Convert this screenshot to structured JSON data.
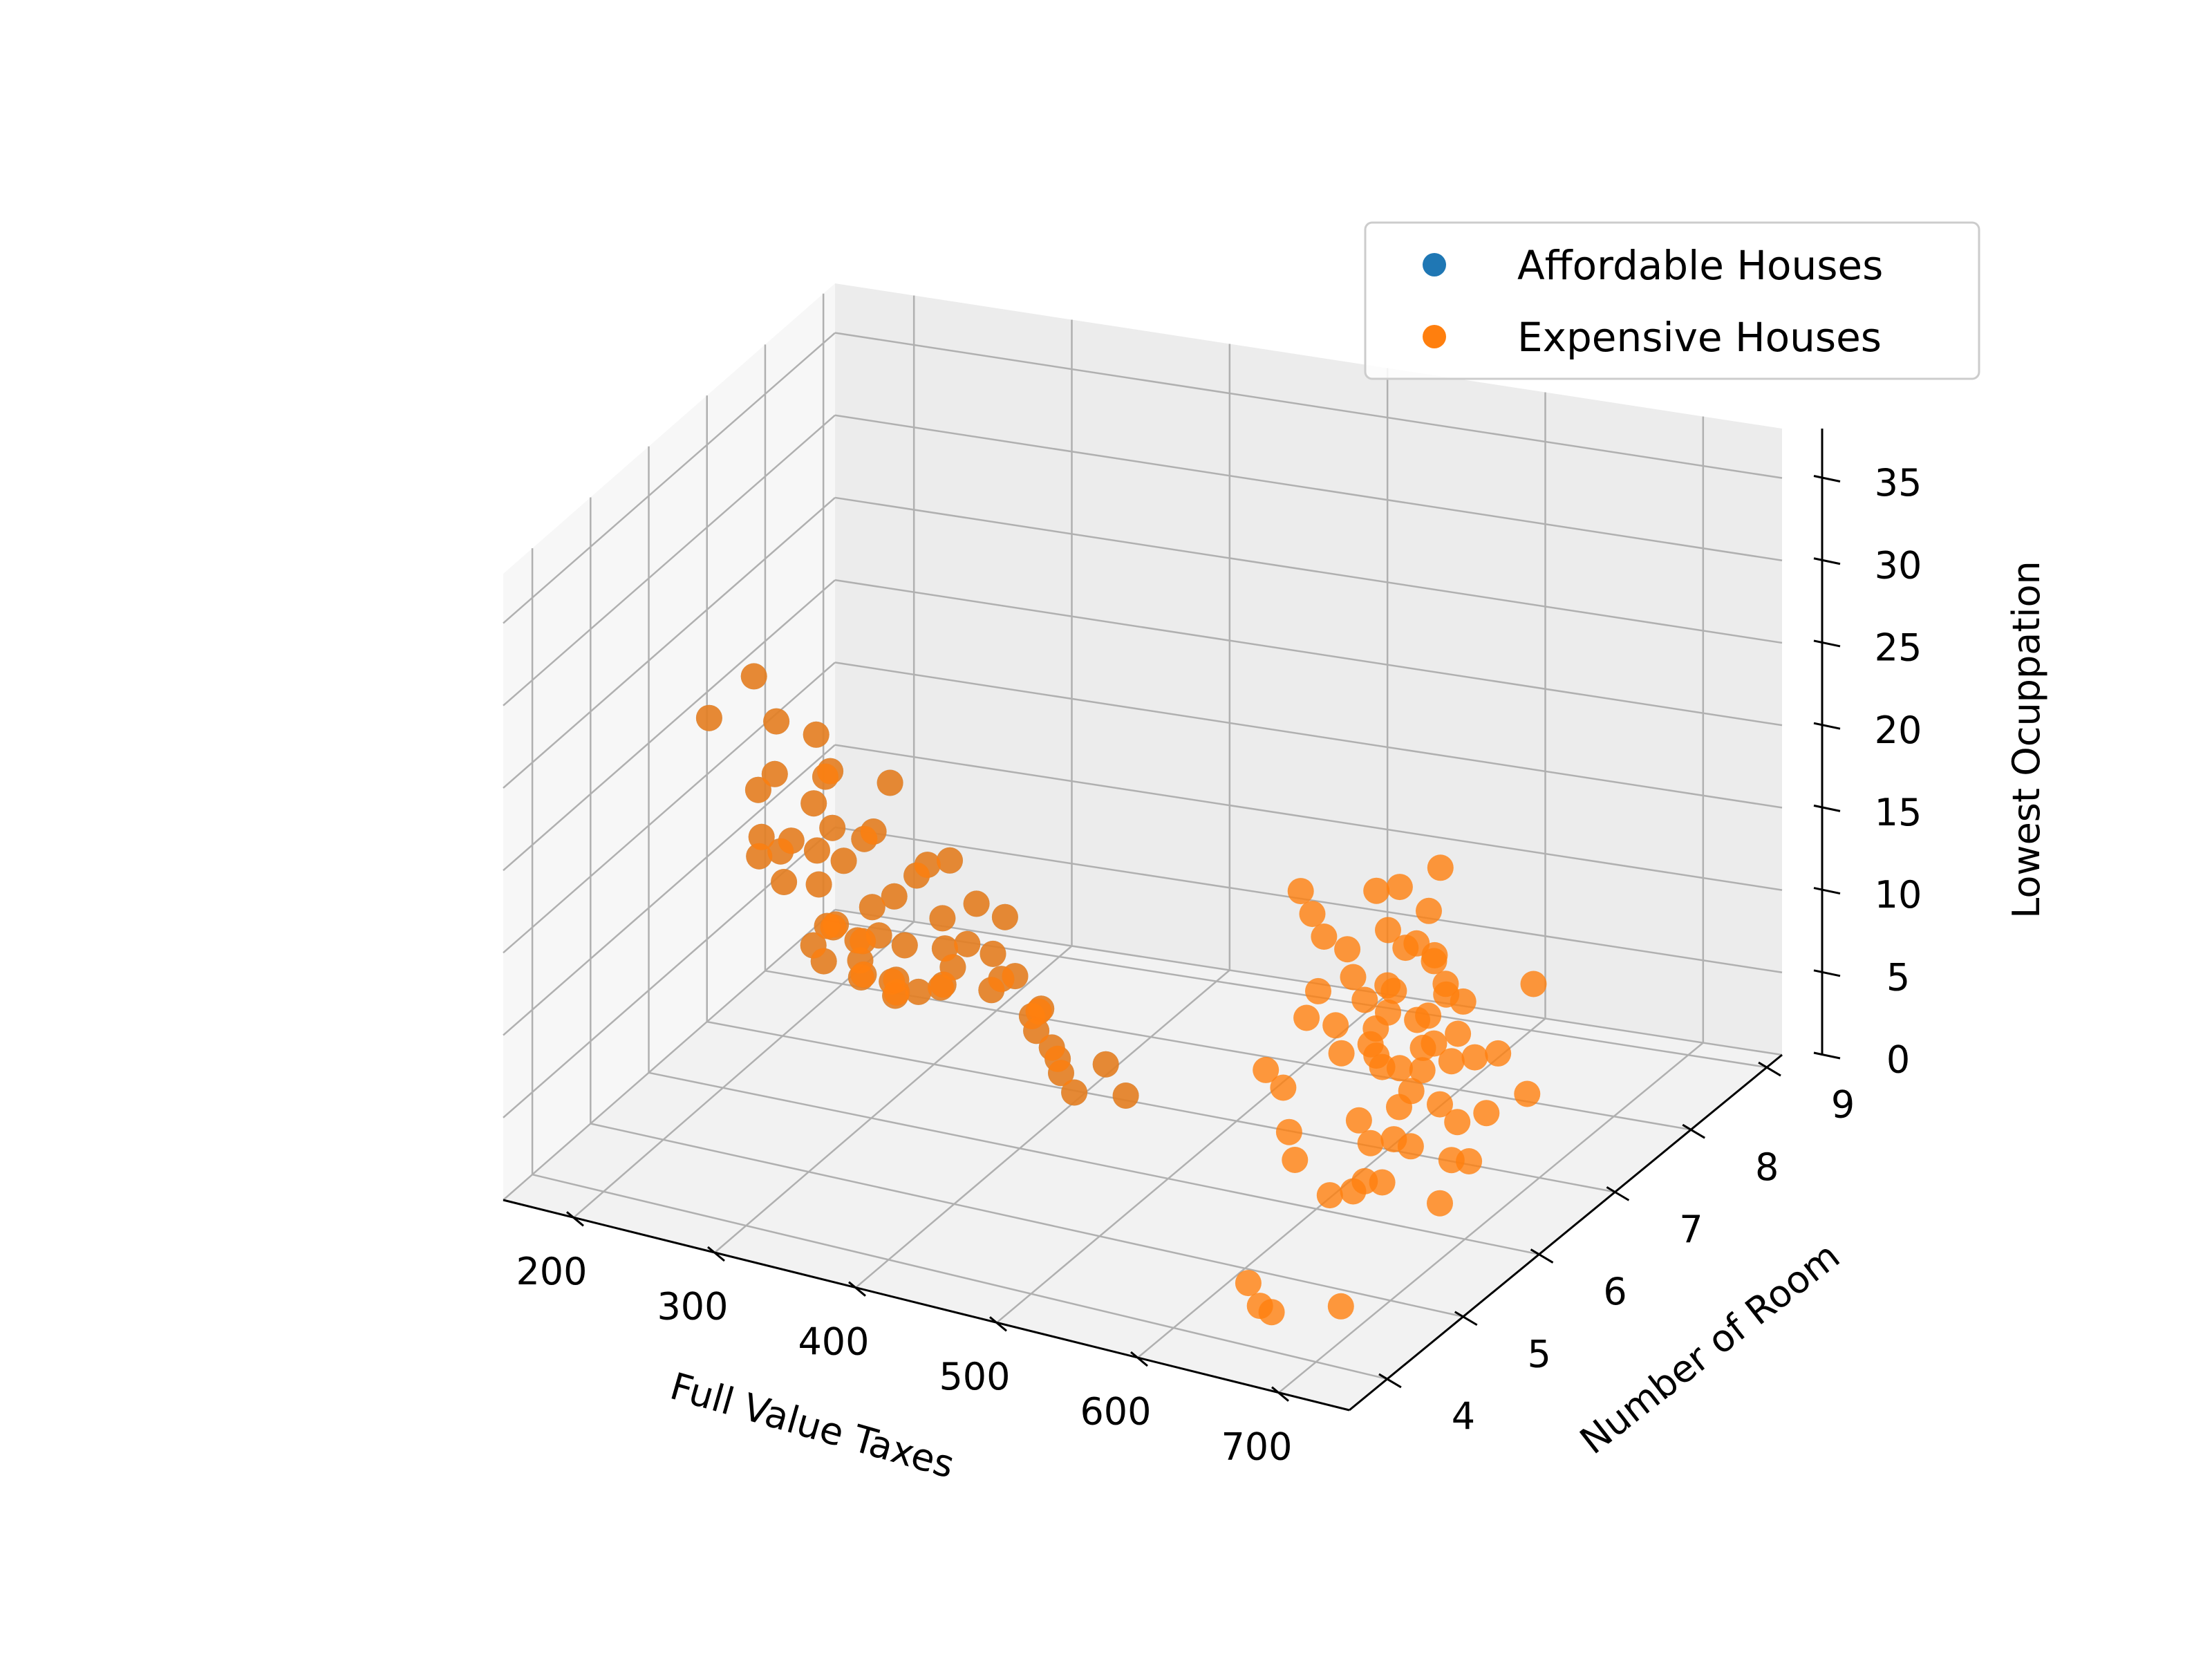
{
  "chart_data": {
    "type": "scatter",
    "projection": "3d",
    "title": "",
    "xlabel": "Full Value Taxes",
    "ylabel": "Number of Room",
    "zlabel": "Lowest Ocuppation",
    "xlim": [
      150,
      750
    ],
    "ylim": [
      3.5,
      9.2
    ],
    "zlim": [
      0,
      38
    ],
    "xticks": [
      200,
      300,
      400,
      500,
      600,
      700
    ],
    "yticks": [
      4,
      5,
      6,
      7,
      8,
      9
    ],
    "zticks": [
      0,
      5,
      10,
      15,
      20,
      25,
      30,
      35
    ],
    "grid": true,
    "legend": {
      "placement": "top-right",
      "entries": [
        {
          "name": "Affordable Houses",
          "color": "#1f77b4"
        },
        {
          "name": "Expensive Houses",
          "color": "#ff7f0e"
        }
      ]
    },
    "series": [
      {
        "name": "Affordable Houses",
        "color": "#1f77b4",
        "points": [
          [
            300,
            6.0,
            10
          ],
          [
            310,
            5.8,
            12
          ],
          [
            290,
            6.3,
            8
          ],
          [
            320,
            6.1,
            14
          ],
          [
            330,
            5.9,
            9
          ],
          [
            280,
            6.5,
            7
          ],
          [
            305,
            6.2,
            11
          ],
          [
            295,
            5.7,
            13
          ],
          [
            315,
            6.4,
            10
          ],
          [
            340,
            6.0,
            16
          ],
          [
            270,
            6.1,
            9
          ],
          [
            325,
            5.6,
            15
          ],
          [
            300,
            6.6,
            6
          ],
          [
            285,
            5.9,
            12
          ],
          [
            310,
            6.3,
            8
          ],
          [
            275,
            5.8,
            11
          ],
          [
            350,
            6.2,
            13
          ],
          [
            260,
            6.4,
            10
          ],
          [
            330,
            6.7,
            7
          ],
          [
            290,
            5.5,
            18
          ],
          [
            360,
            6.0,
            12
          ],
          [
            250,
            5.9,
            14
          ],
          [
            345,
            6.5,
            9
          ],
          [
            280,
            6.2,
            15
          ],
          [
            305,
            5.4,
            20
          ],
          [
            400,
            6.0,
            11
          ],
          [
            420,
            6.2,
            9
          ],
          [
            380,
            5.9,
            13
          ],
          [
            410,
            6.4,
            8
          ],
          [
            390,
            6.1,
            12
          ],
          [
            430,
            5.8,
            10
          ],
          [
            370,
            6.3,
            14
          ],
          [
            440,
            6.0,
            7
          ],
          [
            385,
            6.6,
            9
          ],
          [
            415,
            5.7,
            16
          ],
          [
            300,
            5.2,
            22
          ],
          [
            320,
            5.0,
            25
          ],
          [
            280,
            5.3,
            19
          ],
          [
            340,
            5.1,
            21
          ],
          [
            260,
            5.6,
            17
          ],
          [
            230,
            6.0,
            16
          ],
          [
            240,
            5.7,
            20
          ],
          [
            220,
            6.2,
            14
          ],
          [
            250,
            6.5,
            12
          ],
          [
            265,
            6.8,
            8
          ],
          [
            300,
            7.0,
            5
          ],
          [
            320,
            6.9,
            6
          ],
          [
            280,
            7.1,
            5
          ],
          [
            360,
            6.8,
            7
          ],
          [
            400,
            6.6,
            6
          ],
          [
            430,
            6.3,
            5
          ],
          [
            470,
            6.1,
            7
          ],
          [
            440,
            5.9,
            8
          ],
          [
            460,
            5.8,
            6
          ],
          [
            480,
            6.2,
            5
          ],
          [
            350,
            5.3,
            24
          ],
          [
            290,
            4.8,
            28
          ],
          [
            310,
            5.0,
            27
          ],
          [
            230,
            5.1,
            26
          ],
          [
            270,
            4.9,
            30
          ],
          [
            330,
            5.5,
            20
          ],
          [
            300,
            5.4,
            23
          ],
          [
            360,
            5.7,
            18
          ],
          [
            380,
            5.6,
            19
          ],
          [
            260,
            5.5,
            22
          ]
        ]
      },
      {
        "name": "Expensive Houses",
        "color": "#ff7f0e",
        "points": [
          [
            300,
            6.0,
            10
          ],
          [
            310,
            5.8,
            12
          ],
          [
            290,
            6.3,
            8
          ],
          [
            320,
            6.1,
            14
          ],
          [
            330,
            5.9,
            9
          ],
          [
            280,
            6.5,
            7
          ],
          [
            305,
            6.2,
            11
          ],
          [
            295,
            5.7,
            13
          ],
          [
            315,
            6.4,
            10
          ],
          [
            340,
            6.0,
            16
          ],
          [
            270,
            6.1,
            9
          ],
          [
            325,
            5.6,
            15
          ],
          [
            300,
            6.6,
            6
          ],
          [
            285,
            5.9,
            12
          ],
          [
            310,
            6.3,
            8
          ],
          [
            275,
            5.8,
            11
          ],
          [
            350,
            6.2,
            13
          ],
          [
            260,
            6.4,
            10
          ],
          [
            330,
            6.7,
            7
          ],
          [
            290,
            5.5,
            18
          ],
          [
            360,
            6.0,
            12
          ],
          [
            250,
            5.9,
            14
          ],
          [
            345,
            6.5,
            9
          ],
          [
            280,
            6.2,
            15
          ],
          [
            305,
            5.4,
            20
          ],
          [
            400,
            6.0,
            11
          ],
          [
            420,
            6.2,
            9
          ],
          [
            380,
            5.9,
            13
          ],
          [
            410,
            6.4,
            8
          ],
          [
            390,
            6.1,
            12
          ],
          [
            430,
            5.8,
            10
          ],
          [
            370,
            6.3,
            14
          ],
          [
            440,
            6.0,
            7
          ],
          [
            385,
            6.6,
            9
          ],
          [
            415,
            5.7,
            16
          ],
          [
            300,
            5.2,
            22
          ],
          [
            320,
            5.0,
            25
          ],
          [
            280,
            5.3,
            19
          ],
          [
            340,
            5.1,
            21
          ],
          [
            260,
            5.6,
            17
          ],
          [
            230,
            6.0,
            16
          ],
          [
            240,
            5.7,
            20
          ],
          [
            220,
            6.2,
            14
          ],
          [
            250,
            6.5,
            12
          ],
          [
            265,
            6.8,
            8
          ],
          [
            300,
            7.0,
            5
          ],
          [
            320,
            6.9,
            6
          ],
          [
            280,
            7.1,
            5
          ],
          [
            360,
            6.8,
            7
          ],
          [
            400,
            6.6,
            6
          ],
          [
            430,
            6.3,
            5
          ],
          [
            470,
            6.1,
            7
          ],
          [
            440,
            5.9,
            8
          ],
          [
            460,
            5.8,
            6
          ],
          [
            480,
            6.2,
            5
          ],
          [
            350,
            5.3,
            24
          ],
          [
            290,
            4.8,
            28
          ],
          [
            310,
            5.0,
            27
          ],
          [
            230,
            5.1,
            26
          ],
          [
            270,
            4.9,
            30
          ],
          [
            330,
            5.5,
            20
          ],
          [
            300,
            5.4,
            23
          ],
          [
            360,
            5.7,
            18
          ],
          [
            380,
            5.6,
            19
          ],
          [
            260,
            5.5,
            22
          ],
          [
            666,
            6.2,
            14
          ],
          [
            666,
            6.0,
            12
          ],
          [
            666,
            5.8,
            16
          ],
          [
            666,
            6.4,
            10
          ],
          [
            666,
            5.6,
            18
          ],
          [
            666,
            6.6,
            8
          ],
          [
            666,
            5.9,
            13
          ],
          [
            666,
            6.1,
            11
          ],
          [
            666,
            6.3,
            15
          ],
          [
            666,
            5.7,
            9
          ],
          [
            666,
            6.5,
            17
          ],
          [
            666,
            5.5,
            20
          ],
          [
            666,
            6.7,
            12
          ],
          [
            666,
            6.0,
            22
          ],
          [
            666,
            5.4,
            14
          ],
          [
            666,
            6.8,
            10
          ],
          [
            666,
            5.3,
            16
          ],
          [
            666,
            6.2,
            19
          ],
          [
            666,
            5.9,
            7
          ],
          [
            666,
            6.4,
            21
          ],
          [
            666,
            4.9,
            24
          ],
          [
            666,
            5.1,
            22
          ],
          [
            666,
            4.7,
            26
          ],
          [
            666,
            5.0,
            19
          ],
          [
            666,
            4.8,
            18
          ],
          [
            666,
            7.0,
            15
          ],
          [
            666,
            7.2,
            12
          ],
          [
            666,
            6.9,
            18
          ],
          [
            666,
            7.4,
            9
          ],
          [
            666,
            7.1,
            20
          ],
          [
            666,
            5.2,
            6
          ],
          [
            666,
            5.6,
            5
          ],
          [
            666,
            6.1,
            4
          ],
          [
            666,
            6.3,
            6
          ],
          [
            666,
            5.8,
            5
          ],
          [
            666,
            4.5,
            12
          ],
          [
            666,
            4.4,
            15
          ],
          [
            666,
            4.6,
            10
          ],
          [
            666,
            8.7,
            8
          ],
          [
            666,
            4.1,
            17
          ],
          [
            711,
            5.9,
            14
          ],
          [
            711,
            6.2,
            12
          ],
          [
            711,
            6.0,
            10
          ],
          [
            711,
            6.4,
            15
          ],
          [
            711,
            5.7,
            13
          ],
          [
            711,
            6.6,
            11
          ],
          [
            711,
            5.5,
            9
          ],
          [
            711,
            6.1,
            17
          ],
          [
            711,
            6.3,
            8
          ],
          [
            711,
            5.8,
            16
          ],
          [
            711,
            4.9,
            18
          ],
          [
            711,
            5.1,
            20
          ],
          [
            711,
            6.8,
            7
          ],
          [
            711,
            7.0,
            10
          ],
          [
            711,
            5.3,
            12
          ],
          [
            711,
            6.5,
            5
          ],
          [
            711,
            6.2,
            6
          ],
          [
            711,
            5.6,
            21
          ],
          [
            711,
            5.9,
            19
          ],
          [
            711,
            6.0,
            4
          ],
          [
            666,
            4.0,
            3
          ],
          [
            666,
            3.8,
            5
          ],
          [
            666,
            4.2,
            2
          ],
          [
            711,
            4.3,
            3
          ],
          [
            711,
            7.5,
            6
          ]
        ]
      }
    ]
  }
}
